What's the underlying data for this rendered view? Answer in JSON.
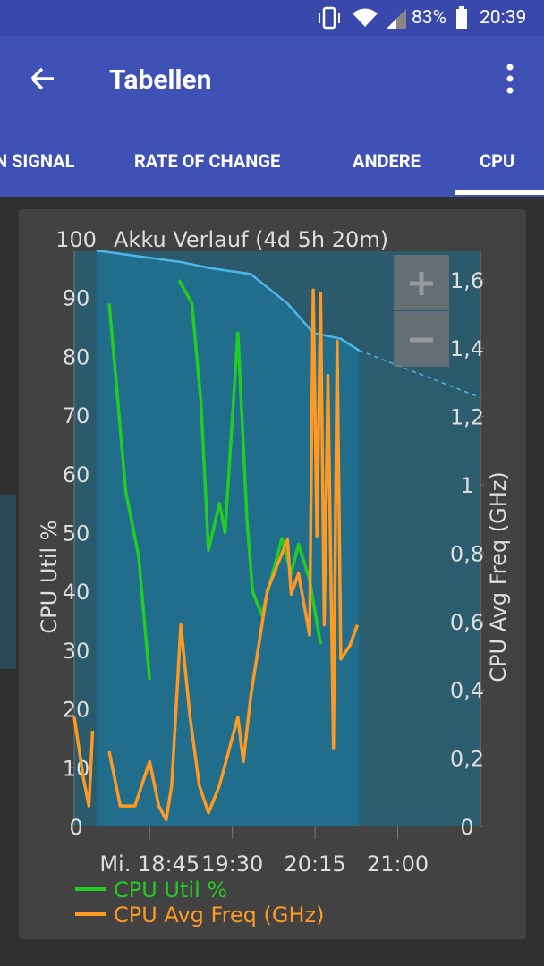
{
  "status": {
    "battery": "83%",
    "time": "20:39"
  },
  "toolbar": {
    "title": "Tabellen"
  },
  "tabs": [
    "N SIGNAL",
    "RATE OF CHANGE",
    "ANDERE",
    "CPU"
  ],
  "chart_data": {
    "type": "line",
    "title": "Akku Verlauf (4d 5h 20m)",
    "ylabel": "CPU Util %",
    "y2label": "CPU Avg Freq (GHz)",
    "xlim": [
      1084,
      1305
    ],
    "xticks": [
      {
        "value": 1125,
        "label": "Mi. 18:45"
      },
      {
        "value": 1170,
        "label": "19:30"
      },
      {
        "value": 1215,
        "label": "20:15"
      },
      {
        "value": 1260,
        "label": "21:00"
      }
    ],
    "ylim": [
      0,
      100
    ],
    "yticks": [
      0,
      10,
      20,
      30,
      40,
      50,
      60,
      70,
      80,
      90,
      100
    ],
    "y2lim": [
      0,
      1.72
    ],
    "y2ticks": [
      0,
      {
        "value": 0.2,
        "label": "0,2"
      },
      {
        "value": 0.4,
        "label": "0,4"
      },
      {
        "value": 0.6,
        "label": "0,6"
      },
      {
        "value": 0.8,
        "label": "0,8"
      },
      1,
      {
        "value": 1.2,
        "label": "1,2"
      },
      {
        "value": 1.4,
        "label": "1,4"
      },
      {
        "value": 1.6,
        "label": "1,6"
      }
    ],
    "series": [
      {
        "name": "CPU Util %",
        "color": "#22cc22",
        "x": [
          1103,
          1107,
          1112,
          1119,
          1125,
          1135,
          1141,
          1148,
          1153,
          1157,
          1163,
          1166,
          1173,
          1178,
          1181,
          1186,
          1191,
          1197,
          1202,
          1206,
          1212,
          1218
        ],
        "values": [
          89,
          75,
          57,
          46,
          25,
          null,
          93,
          89,
          72,
          47,
          55,
          50,
          84,
          52,
          40,
          36,
          42,
          49,
          43,
          48,
          42,
          31
        ]
      },
      {
        "name": "CPU Avg Freq (GHz)",
        "color": "#ff9922",
        "axis": "y2",
        "x": [
          1084,
          1089,
          1092,
          1094,
          1098,
          1103,
          1109,
          1117,
          1125,
          1130,
          1134,
          1137,
          1142,
          1147,
          1152,
          1157,
          1163,
          1173,
          1176,
          1180,
          1189,
          1200,
          1202,
          1206,
          1212,
          1214,
          1216,
          1218,
          1220,
          1222,
          1225,
          1227,
          1229,
          1234,
          1238
        ],
        "values": [
          0.32,
          0.14,
          0.06,
          0.28,
          null,
          0.22,
          0.06,
          0.06,
          0.19,
          0.06,
          0.02,
          0.12,
          0.59,
          0.32,
          0.12,
          0.04,
          0.12,
          0.32,
          0.19,
          0.38,
          0.69,
          0.84,
          0.68,
          0.74,
          0.56,
          1.57,
          0.85,
          1.56,
          0.59,
          1.32,
          0.23,
          1.42,
          0.49,
          0.53,
          0.59
        ]
      },
      {
        "color": "#4db6e8",
        "area": true,
        "x": [
          1096,
          1131,
          1143,
          1158,
          1180,
          1200,
          1214,
          1229,
          1239
        ],
        "values": [
          98,
          96.5,
          96,
          95,
          94,
          89,
          84,
          83,
          81
        ]
      },
      {
        "color": "#4db6e8",
        "dashed": true,
        "x": [
          1239,
          1305
        ],
        "values": [
          81,
          73
        ]
      }
    ]
  }
}
